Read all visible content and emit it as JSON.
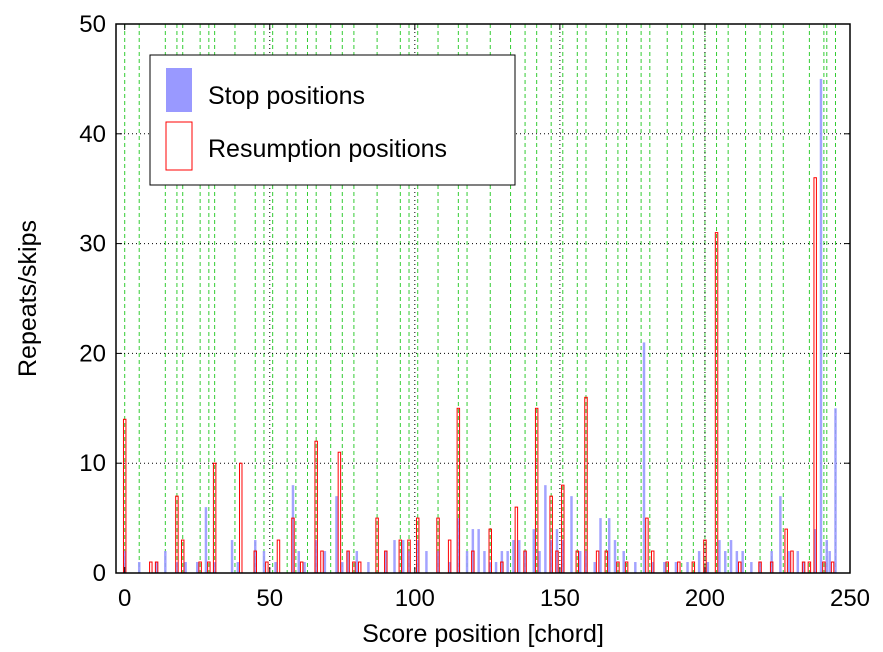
{
  "chart_data": {
    "type": "bar",
    "title": "",
    "xlabel": "Score position [chord]",
    "ylabel": "Repeats/skips",
    "xlim": [
      -3,
      250
    ],
    "ylim": [
      0,
      50
    ],
    "xticks": [
      0,
      50,
      100,
      150,
      200,
      250
    ],
    "yticks": [
      0,
      10,
      20,
      30,
      40,
      50
    ],
    "grid": {
      "horizontal_dotted_black": [
        10,
        20,
        30,
        40
      ],
      "vertical_dotted_black": [
        50,
        100,
        150,
        200
      ]
    },
    "green_dashed_lines_x": [
      0,
      5,
      14,
      18,
      20,
      26,
      29,
      31,
      38,
      45,
      48,
      51,
      56,
      59,
      63,
      66,
      71,
      75,
      79,
      87,
      95,
      98,
      101,
      108,
      115,
      118,
      126,
      133,
      138,
      142,
      147,
      151,
      156,
      159,
      166,
      170,
      173,
      178,
      181,
      187,
      192,
      196,
      200,
      204,
      208,
      214,
      219,
      223,
      227,
      236,
      241,
      242,
      245
    ],
    "legend": {
      "placement": "top-left",
      "colors": {
        "stop": "#9999ff",
        "resumption": "#ff0000"
      }
    },
    "series": [
      {
        "name": "Stop positions",
        "style": "filled",
        "color": "#9999ff",
        "x": [
          0,
          5,
          11,
          14,
          18,
          21,
          25,
          28,
          31,
          37,
          39,
          45,
          48,
          52,
          58,
          60,
          62,
          66,
          69,
          73,
          75,
          77,
          80,
          84,
          90,
          93,
          96,
          98,
          101,
          104,
          108,
          112,
          115,
          118,
          120,
          122,
          124,
          126,
          128,
          130,
          132,
          134,
          136,
          138,
          141,
          143,
          145,
          147,
          149,
          151,
          154,
          157,
          159,
          162,
          164,
          167,
          169,
          172,
          176,
          179,
          182,
          186,
          190,
          194,
          198,
          201,
          205,
          207,
          209,
          211,
          213,
          216,
          219,
          223,
          226,
          229,
          232,
          234,
          238,
          240,
          242,
          243,
          245
        ],
        "values": [
          2,
          1,
          1,
          2,
          1,
          1,
          1,
          6,
          1,
          3,
          1,
          3,
          2,
          1,
          8,
          2,
          1,
          3,
          2,
          7,
          1,
          2,
          2,
          1,
          2,
          3,
          3,
          2,
          3,
          2,
          2,
          1,
          5,
          2,
          4,
          4,
          2,
          1,
          1,
          2,
          2,
          3,
          3,
          2,
          4,
          2,
          8,
          3,
          4,
          3,
          7,
          2,
          2,
          1,
          5,
          5,
          3,
          2,
          1,
          21,
          1,
          1,
          1,
          1,
          2,
          1,
          3,
          2,
          3,
          2,
          2,
          1,
          1,
          2,
          7,
          2,
          2,
          1,
          4,
          45,
          3,
          2,
          15
        ]
      },
      {
        "name": "Resumption positions",
        "style": "outline",
        "color": "#ff0000",
        "x": [
          0,
          9,
          11,
          18,
          20,
          26,
          29,
          31,
          40,
          45,
          49,
          53,
          58,
          61,
          66,
          68,
          74,
          77,
          79,
          81,
          87,
          90,
          95,
          98,
          101,
          108,
          112,
          115,
          120,
          126,
          130,
          135,
          138,
          142,
          147,
          149,
          151,
          156,
          159,
          163,
          166,
          170,
          173,
          180,
          182,
          187,
          191,
          196,
          200,
          204,
          212,
          219,
          223,
          228,
          230,
          234,
          236,
          238,
          241,
          244
        ],
        "values": [
          14,
          1,
          1,
          7,
          3,
          1,
          1,
          10,
          10,
          2,
          1,
          3,
          5,
          1,
          12,
          2,
          11,
          2,
          1,
          1,
          5,
          2,
          3,
          3,
          5,
          5,
          3,
          15,
          2,
          4,
          1,
          6,
          2,
          15,
          7,
          2,
          8,
          2,
          16,
          2,
          2,
          1,
          1,
          5,
          2,
          1,
          1,
          1,
          3,
          31,
          1,
          1,
          1,
          4,
          2,
          1,
          1,
          36,
          1,
          1
        ]
      }
    ]
  }
}
